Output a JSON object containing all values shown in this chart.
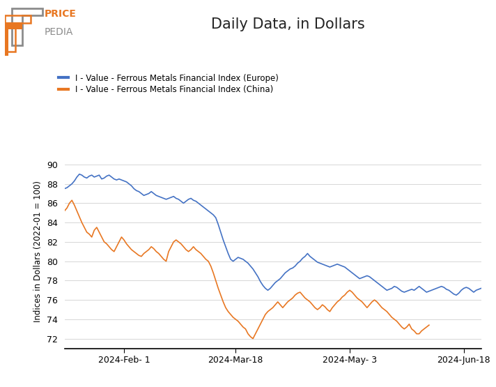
{
  "title": "Daily Data, in Dollars",
  "ylabel": "Indices in Dollars (2022-01 = 100)",
  "legend_europe": "I - Value - Ferrous Metals Financial Index (Europe)",
  "legend_china": "I - Value - Ferrous Metals Financial Index (China)",
  "color_europe": "#4472C4",
  "color_china": "#E87722",
  "ylim": [
    71,
    91
  ],
  "yticks": [
    72,
    74,
    76,
    78,
    80,
    82,
    84,
    86,
    88,
    90
  ],
  "xtick_labels": [
    "2024-Feb- 1",
    "2024-Mar-18",
    "2024-May- 3",
    "2024-Jun-18"
  ],
  "background_color": "#ffffff",
  "logo_orange": "#E87722",
  "logo_gray": "#8C8C8C",
  "europe_data": [
    87.5,
    87.6,
    87.8,
    88.0,
    88.3,
    88.7,
    89.0,
    88.9,
    88.7,
    88.6,
    88.8,
    88.9,
    88.7,
    88.8,
    88.9,
    88.5,
    88.6,
    88.8,
    88.9,
    88.7,
    88.5,
    88.4,
    88.5,
    88.4,
    88.3,
    88.2,
    88.0,
    87.8,
    87.5,
    87.3,
    87.2,
    87.0,
    86.8,
    86.9,
    87.0,
    87.2,
    87.0,
    86.8,
    86.7,
    86.6,
    86.5,
    86.4,
    86.5,
    86.6,
    86.7,
    86.5,
    86.4,
    86.2,
    86.0,
    86.2,
    86.4,
    86.5,
    86.3,
    86.2,
    86.0,
    85.8,
    85.6,
    85.4,
    85.2,
    85.0,
    84.8,
    84.5,
    83.8,
    83.0,
    82.2,
    81.5,
    80.8,
    80.2,
    80.0,
    80.2,
    80.4,
    80.3,
    80.2,
    80.0,
    79.8,
    79.5,
    79.2,
    78.8,
    78.4,
    77.9,
    77.5,
    77.2,
    77.0,
    77.2,
    77.5,
    77.8,
    78.0,
    78.2,
    78.5,
    78.8,
    79.0,
    79.2,
    79.3,
    79.5,
    79.8,
    80.0,
    80.3,
    80.5,
    80.8,
    80.5,
    80.3,
    80.1,
    79.9,
    79.8,
    79.7,
    79.6,
    79.5,
    79.4,
    79.5,
    79.6,
    79.7,
    79.6,
    79.5,
    79.4,
    79.2,
    79.0,
    78.8,
    78.6,
    78.4,
    78.2,
    78.3,
    78.4,
    78.5,
    78.4,
    78.2,
    78.0,
    77.8,
    77.6,
    77.4,
    77.2,
    77.0,
    77.1,
    77.2,
    77.4,
    77.3,
    77.1,
    76.9,
    76.8,
    76.9,
    77.0,
    77.1,
    77.0,
    77.2,
    77.4,
    77.2,
    77.0,
    76.8,
    76.9,
    77.0,
    77.1,
    77.2,
    77.3,
    77.4,
    77.3,
    77.1,
    77.0,
    76.8,
    76.6,
    76.5,
    76.7,
    77.0,
    77.2,
    77.3,
    77.2,
    77.0,
    76.8,
    77.0,
    77.1,
    77.2
  ],
  "china_data": [
    85.2,
    85.5,
    86.0,
    86.3,
    85.8,
    85.2,
    84.6,
    84.0,
    83.5,
    83.0,
    82.8,
    82.5,
    83.2,
    83.5,
    83.0,
    82.5,
    82.0,
    81.8,
    81.5,
    81.2,
    81.0,
    81.5,
    82.0,
    82.5,
    82.2,
    81.8,
    81.5,
    81.2,
    81.0,
    80.8,
    80.6,
    80.5,
    80.8,
    81.0,
    81.2,
    81.5,
    81.3,
    81.0,
    80.8,
    80.5,
    80.2,
    80.0,
    81.0,
    81.5,
    82.0,
    82.2,
    82.0,
    81.8,
    81.5,
    81.2,
    81.0,
    81.2,
    81.5,
    81.2,
    81.0,
    80.8,
    80.5,
    80.2,
    80.0,
    79.5,
    78.8,
    78.0,
    77.2,
    76.5,
    75.8,
    75.2,
    74.8,
    74.5,
    74.2,
    74.0,
    73.8,
    73.5,
    73.2,
    73.0,
    72.5,
    72.2,
    72.0,
    72.5,
    73.0,
    73.5,
    74.0,
    74.5,
    74.8,
    75.0,
    75.2,
    75.5,
    75.8,
    75.5,
    75.2,
    75.5,
    75.8,
    76.0,
    76.2,
    76.5,
    76.7,
    76.8,
    76.5,
    76.2,
    76.0,
    75.8,
    75.5,
    75.2,
    75.0,
    75.2,
    75.5,
    75.3,
    75.0,
    74.8,
    75.2,
    75.5,
    75.8,
    76.0,
    76.3,
    76.5,
    76.8,
    77.0,
    76.8,
    76.5,
    76.2,
    76.0,
    75.8,
    75.5,
    75.2,
    75.5,
    75.8,
    76.0,
    75.8,
    75.5,
    75.2,
    75.0,
    74.8,
    74.5,
    74.2,
    74.0,
    73.8,
    73.5,
    73.2,
    73.0,
    73.2,
    73.5,
    73.0,
    72.8,
    72.5,
    72.5,
    72.8,
    73.0,
    73.2,
    73.4
  ]
}
